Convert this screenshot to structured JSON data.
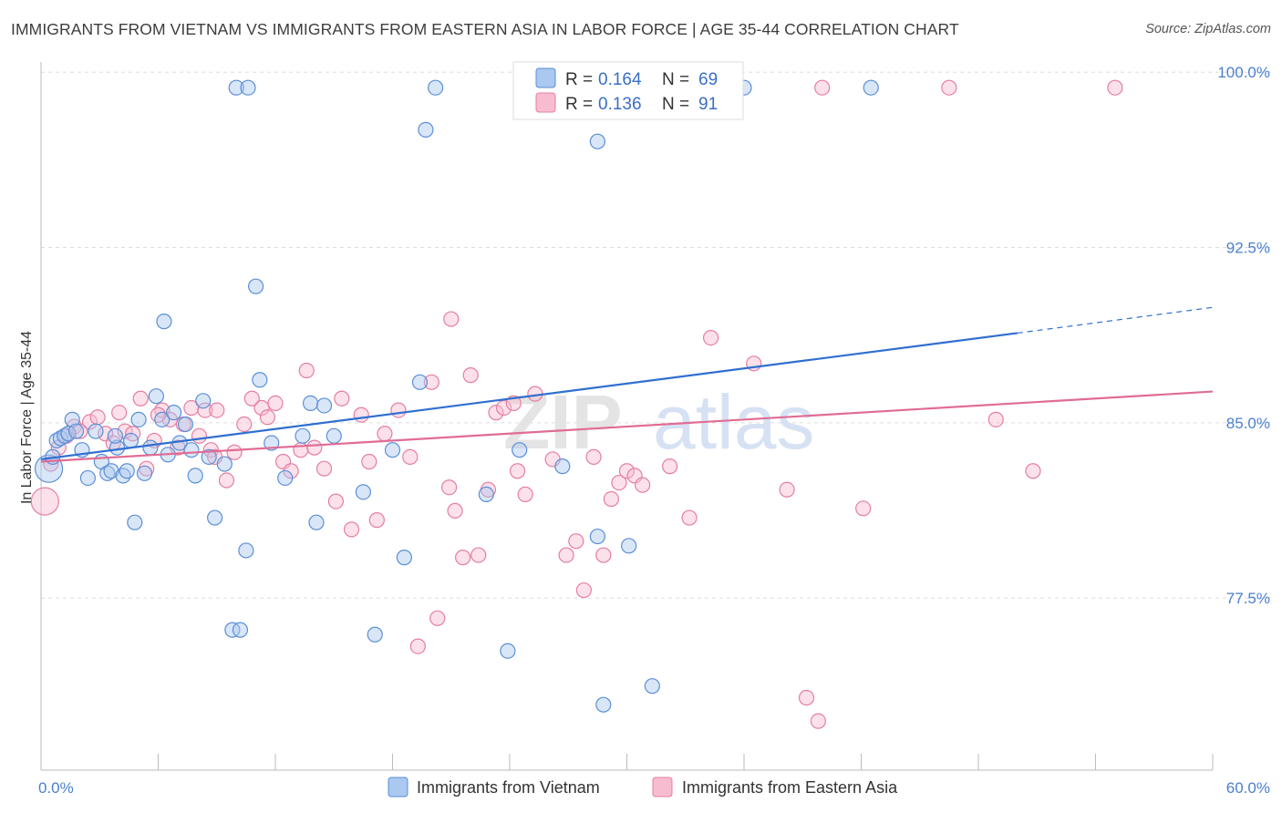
{
  "title": "IMMIGRANTS FROM VIETNAM VS IMMIGRANTS FROM EASTERN ASIA IN LABOR FORCE | AGE 35-44 CORRELATION CHART",
  "source": "Source: ZipAtlas.com",
  "watermark": {
    "part1": "ZIP",
    "part2": "atlas"
  },
  "colors": {
    "vietnam_fill": "#aac8f0",
    "vietnam_stroke": "#5b8fd6",
    "vietnam_line": "#2f6fd0",
    "eastasia_fill": "#f8bcd0",
    "eastasia_stroke": "#e47ea2",
    "eastasia_line": "#e06c94",
    "tick_label": "#4a7fcf",
    "grid": "#dddddd"
  },
  "legend": {
    "rows": [
      {
        "r_label": "R =",
        "r_value": "0.164",
        "n_label": "N =",
        "n_value": "69"
      },
      {
        "r_label": "R =",
        "r_value": "0.136",
        "n_label": "N =",
        "n_value": "91"
      }
    ]
  },
  "chart_data": {
    "type": "scatter",
    "ylabel": "In Labor Force | Age 35-44",
    "xlim": [
      0,
      60
    ],
    "ylim": [
      70.8,
      101.1
    ],
    "x_tick_labels": [
      {
        "value": 0,
        "label": "0.0%"
      },
      {
        "value": 60,
        "label": "60.0%"
      }
    ],
    "y_tick_labels": [
      {
        "value": 100,
        "label": "100.0%"
      },
      {
        "value": 92.5,
        "label": "92.5%"
      },
      {
        "value": 85,
        "label": "85.0%"
      },
      {
        "value": 77.5,
        "label": "77.5%"
      }
    ],
    "grid": "horizontal dashed",
    "series": [
      {
        "name": "Immigrants from Vietnam",
        "trend": {
          "x0": 0,
          "y0": 84.1,
          "x1": 50,
          "y1": 89.5,
          "dash_to_x": 60,
          "dash_to_y": 90.6
        },
        "points": [
          [
            0.4,
            83.7
          ],
          [
            0.6,
            84.2
          ],
          [
            0.8,
            84.9
          ],
          [
            1.0,
            85.0
          ],
          [
            1.2,
            85.1
          ],
          [
            1.4,
            85.2
          ],
          [
            1.6,
            85.8
          ],
          [
            1.8,
            85.3
          ],
          [
            2.1,
            84.5
          ],
          [
            2.4,
            83.3
          ],
          [
            2.8,
            85.3
          ],
          [
            3.1,
            84.0
          ],
          [
            3.4,
            83.5
          ],
          [
            3.6,
            83.6
          ],
          [
            3.9,
            84.6
          ],
          [
            4.2,
            83.4
          ],
          [
            4.4,
            83.6
          ],
          [
            4.6,
            84.9
          ],
          [
            5.0,
            85.8
          ],
          [
            5.3,
            83.5
          ],
          [
            5.6,
            84.6
          ],
          [
            5.9,
            86.8
          ],
          [
            6.2,
            85.8
          ],
          [
            6.5,
            84.3
          ],
          [
            6.8,
            86.1
          ],
          [
            7.1,
            84.8
          ],
          [
            7.4,
            85.6
          ],
          [
            7.7,
            84.5
          ],
          [
            7.9,
            83.4
          ],
          [
            8.3,
            86.6
          ],
          [
            8.6,
            84.2
          ],
          [
            8.9,
            81.6
          ],
          [
            9.4,
            83.9
          ],
          [
            9.8,
            76.8
          ],
          [
            10.2,
            76.8
          ],
          [
            10.5,
            80.2
          ],
          [
            11.0,
            91.5
          ],
          [
            11.2,
            87.5
          ],
          [
            11.8,
            84.8
          ],
          [
            12.5,
            83.3
          ],
          [
            13.4,
            85.1
          ],
          [
            13.8,
            86.5
          ],
          [
            14.1,
            81.4
          ],
          [
            15.0,
            85.1
          ],
          [
            16.5,
            82.7
          ],
          [
            17.1,
            76.6
          ],
          [
            18.0,
            84.5
          ],
          [
            18.6,
            79.9
          ],
          [
            19.4,
            87.4
          ],
          [
            19.7,
            98.2
          ],
          [
            22.8,
            82.6
          ],
          [
            23.9,
            75.9
          ],
          [
            24.5,
            84.5
          ],
          [
            26.7,
            83.8
          ],
          [
            28.5,
            80.8
          ],
          [
            28.8,
            73.6
          ],
          [
            30.1,
            80.4
          ],
          [
            31.3,
            74.4
          ],
          [
            6.3,
            90.0
          ],
          [
            10.0,
            100.0
          ],
          [
            10.6,
            100.0
          ],
          [
            20.2,
            100.0
          ],
          [
            25.7,
            100.0
          ],
          [
            36.0,
            100.0
          ],
          [
            42.5,
            100.0
          ],
          [
            28.5,
            97.7
          ],
          [
            14.5,
            86.4
          ],
          [
            4.8,
            81.4
          ],
          [
            3.8,
            85.1
          ]
        ]
      },
      {
        "name": "Immigrants from Eastern Asia",
        "trend": {
          "x0": 0,
          "y0": 84.0,
          "x1": 60,
          "y1": 87.0
        },
        "points": [
          [
            0.2,
            82.3
          ],
          [
            0.5,
            83.9
          ],
          [
            0.9,
            84.6
          ],
          [
            1.3,
            85.1
          ],
          [
            1.7,
            85.5
          ],
          [
            2.0,
            85.3
          ],
          [
            2.5,
            85.7
          ],
          [
            2.9,
            85.9
          ],
          [
            3.3,
            85.2
          ],
          [
            3.7,
            84.8
          ],
          [
            4.0,
            86.1
          ],
          [
            4.3,
            85.3
          ],
          [
            4.7,
            85.2
          ],
          [
            5.1,
            86.7
          ],
          [
            5.4,
            83.7
          ],
          [
            5.8,
            84.9
          ],
          [
            6.2,
            86.2
          ],
          [
            6.6,
            85.8
          ],
          [
            7.0,
            84.6
          ],
          [
            7.3,
            85.6
          ],
          [
            7.7,
            86.3
          ],
          [
            8.1,
            85.1
          ],
          [
            8.4,
            86.2
          ],
          [
            8.7,
            84.5
          ],
          [
            9.0,
            86.2
          ],
          [
            9.5,
            83.2
          ],
          [
            9.9,
            84.4
          ],
          [
            10.4,
            85.6
          ],
          [
            10.8,
            86.7
          ],
          [
            11.3,
            86.3
          ],
          [
            11.6,
            85.9
          ],
          [
            12.0,
            86.5
          ],
          [
            12.4,
            84.0
          ],
          [
            12.8,
            83.6
          ],
          [
            13.3,
            84.5
          ],
          [
            13.6,
            87.9
          ],
          [
            14.0,
            84.6
          ],
          [
            14.5,
            83.7
          ],
          [
            15.1,
            82.3
          ],
          [
            15.4,
            86.7
          ],
          [
            15.9,
            81.1
          ],
          [
            16.4,
            86.0
          ],
          [
            16.8,
            84.0
          ],
          [
            17.2,
            81.5
          ],
          [
            17.6,
            85.2
          ],
          [
            18.3,
            86.2
          ],
          [
            18.9,
            84.2
          ],
          [
            19.3,
            76.1
          ],
          [
            20.0,
            87.4
          ],
          [
            20.3,
            77.3
          ],
          [
            20.9,
            82.9
          ],
          [
            21.2,
            81.9
          ],
          [
            21.6,
            79.9
          ],
          [
            22.0,
            87.7
          ],
          [
            22.4,
            80.0
          ],
          [
            22.9,
            82.8
          ],
          [
            23.3,
            86.1
          ],
          [
            23.7,
            86.3
          ],
          [
            24.4,
            83.6
          ],
          [
            24.8,
            82.6
          ],
          [
            25.3,
            86.9
          ],
          [
            26.2,
            84.1
          ],
          [
            26.9,
            80.0
          ],
          [
            27.4,
            80.6
          ],
          [
            27.8,
            78.5
          ],
          [
            28.3,
            84.2
          ],
          [
            28.8,
            80.0
          ],
          [
            29.2,
            82.4
          ],
          [
            29.6,
            83.1
          ],
          [
            30.0,
            83.6
          ],
          [
            30.4,
            83.4
          ],
          [
            30.8,
            83.0
          ],
          [
            32.2,
            83.8
          ],
          [
            33.2,
            81.6
          ],
          [
            34.3,
            89.3
          ],
          [
            36.5,
            88.2
          ],
          [
            38.2,
            82.8
          ],
          [
            39.2,
            73.9
          ],
          [
            39.8,
            72.9
          ],
          [
            42.1,
            82.0
          ],
          [
            48.9,
            85.8
          ],
          [
            50.8,
            83.6
          ],
          [
            21.0,
            90.1
          ],
          [
            24.2,
            86.5
          ],
          [
            40.0,
            100.0
          ],
          [
            55.0,
            100.0
          ],
          [
            46.5,
            100.0
          ],
          [
            29.5,
            100.0
          ],
          [
            33.5,
            100.0
          ],
          [
            8.9,
            84.2
          ],
          [
            6.0,
            86.0
          ]
        ]
      }
    ]
  }
}
